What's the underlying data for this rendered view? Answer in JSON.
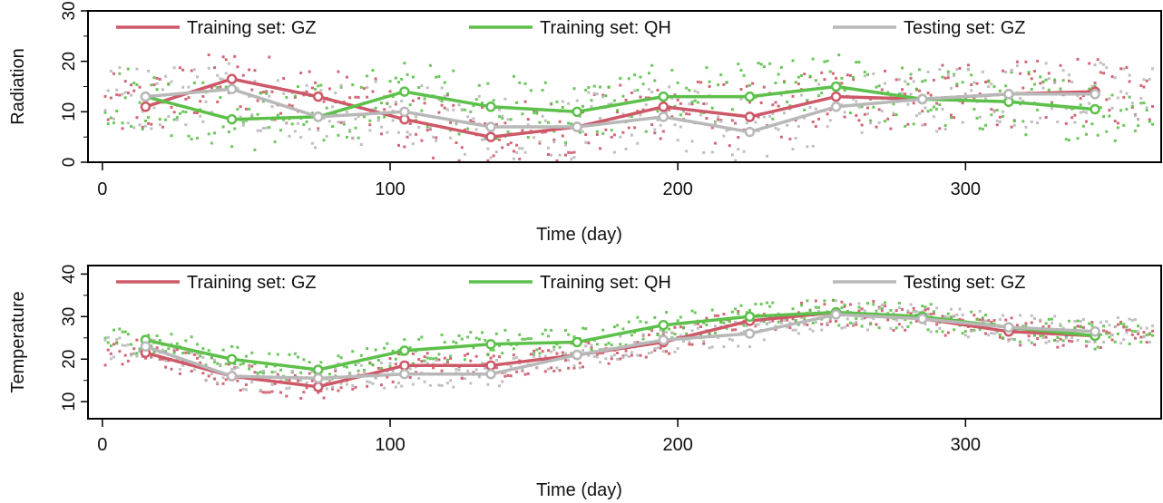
{
  "chart_data": [
    {
      "type": "line",
      "ylabel": "Radiation",
      "xlabel": "Time (day)",
      "xlim": [
        -5,
        368
      ],
      "ylim": [
        0,
        30
      ],
      "xticks": [
        0,
        100,
        200,
        300
      ],
      "yticks": [
        0,
        10,
        20,
        30
      ],
      "legend": "top",
      "grid": false,
      "x": [
        15,
        45,
        75,
        105,
        135,
        165,
        195,
        225,
        255,
        285,
        315,
        345
      ],
      "series": [
        {
          "name": "Training set: GZ",
          "color": "#cd5868",
          "values": [
            11,
            16.5,
            13,
            8.5,
            5,
            7,
            11,
            9,
            13,
            12.5,
            13.5,
            14
          ]
        },
        {
          "name": "Training set: QH",
          "color": "#5cc04a",
          "values": [
            13,
            8.5,
            9,
            14,
            11,
            10,
            13,
            13,
            15,
            12.5,
            12,
            10.5
          ]
        },
        {
          "name": "Testing set: GZ",
          "color": "#b8b8b8",
          "values": [
            13,
            14.5,
            9,
            10,
            7,
            7,
            9,
            6,
            11,
            12.5,
            13.5,
            13.5
          ]
        }
      ]
    },
    {
      "type": "line",
      "ylabel": "Temperature",
      "xlabel": "Time (day)",
      "xlim": [
        -5,
        368
      ],
      "ylim": [
        6,
        42
      ],
      "xticks": [
        0,
        100,
        200,
        300
      ],
      "yticks": [
        10,
        20,
        30,
        40
      ],
      "legend": "top",
      "grid": false,
      "x": [
        15,
        45,
        75,
        105,
        135,
        165,
        195,
        225,
        255,
        285,
        315,
        345
      ],
      "series": [
        {
          "name": "Training set: GZ",
          "color": "#cd5868",
          "values": [
            21.5,
            16,
            13.5,
            18.5,
            18.5,
            21,
            24,
            29,
            31,
            29.5,
            26.5,
            25.5
          ]
        },
        {
          "name": "Training set: QH",
          "color": "#5cc04a",
          "values": [
            24.5,
            20,
            17.5,
            22,
            23.5,
            24,
            28,
            30,
            31,
            30,
            27.5,
            25.5
          ]
        },
        {
          "name": "Testing set: GZ",
          "color": "#b8b8b8",
          "values": [
            23,
            16,
            15.5,
            16.5,
            16.5,
            21,
            24.5,
            26,
            30.5,
            29.5,
            27.5,
            26.5
          ]
        }
      ]
    }
  ]
}
